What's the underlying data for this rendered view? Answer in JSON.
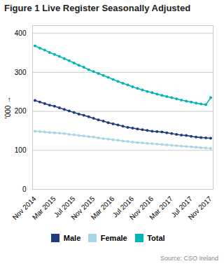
{
  "chart_data": {
    "type": "line",
    "title": "Figure 1 Live Register Seasonally Adjusted",
    "ylabel": "'000",
    "annotations": [
      "Source: CSO Ireland"
    ],
    "categories": [
      "Nov 2014",
      null,
      null,
      null,
      "Mar 2015",
      null,
      null,
      null,
      "Jul 2015",
      null,
      null,
      null,
      "Nov 2015",
      null,
      null,
      null,
      "Mar 2016",
      null,
      null,
      null,
      "Jul 2016",
      null,
      null,
      null,
      "Nov 2016",
      null,
      null,
      null,
      "Mar 2017",
      null,
      null,
      null,
      "Jul 2017",
      null,
      null,
      null,
      "Nov 2017"
    ],
    "series": [
      {
        "name": "Male",
        "color": "#1f3d7a",
        "values": [
          228,
          224,
          220,
          216,
          213,
          209,
          205,
          201,
          197,
          193,
          190,
          186,
          182,
          178,
          175,
          171,
          168,
          165,
          162,
          159,
          157,
          155,
          153,
          151,
          149,
          148,
          147,
          145,
          143,
          141,
          139,
          138,
          136,
          134,
          133,
          132,
          131
        ]
      },
      {
        "name": "Female",
        "color": "#a8d4e8",
        "values": [
          149,
          148,
          147,
          146,
          145,
          144,
          143,
          141,
          140,
          138,
          137,
          135,
          134,
          132,
          130,
          129,
          127,
          126,
          124,
          123,
          121,
          120,
          119,
          118,
          117,
          116,
          115,
          114,
          113,
          112,
          111,
          110,
          109,
          108,
          107,
          106,
          105
        ]
      },
      {
        "name": "Total",
        "color": "#00b5b8",
        "values": [
          368,
          362,
          357,
          351,
          346,
          341,
          335,
          330,
          324,
          318,
          313,
          307,
          302,
          297,
          292,
          287,
          282,
          277,
          272,
          268,
          263,
          259,
          255,
          251,
          248,
          244,
          241,
          238,
          235,
          232,
          229,
          226,
          224,
          221,
          219,
          217,
          235
        ]
      }
    ],
    "ylim": [
      0,
      420
    ],
    "yticks": [
      0,
      100,
      200,
      300,
      400
    ],
    "grid": true,
    "legend": "bottom",
    "marker": "circle"
  }
}
